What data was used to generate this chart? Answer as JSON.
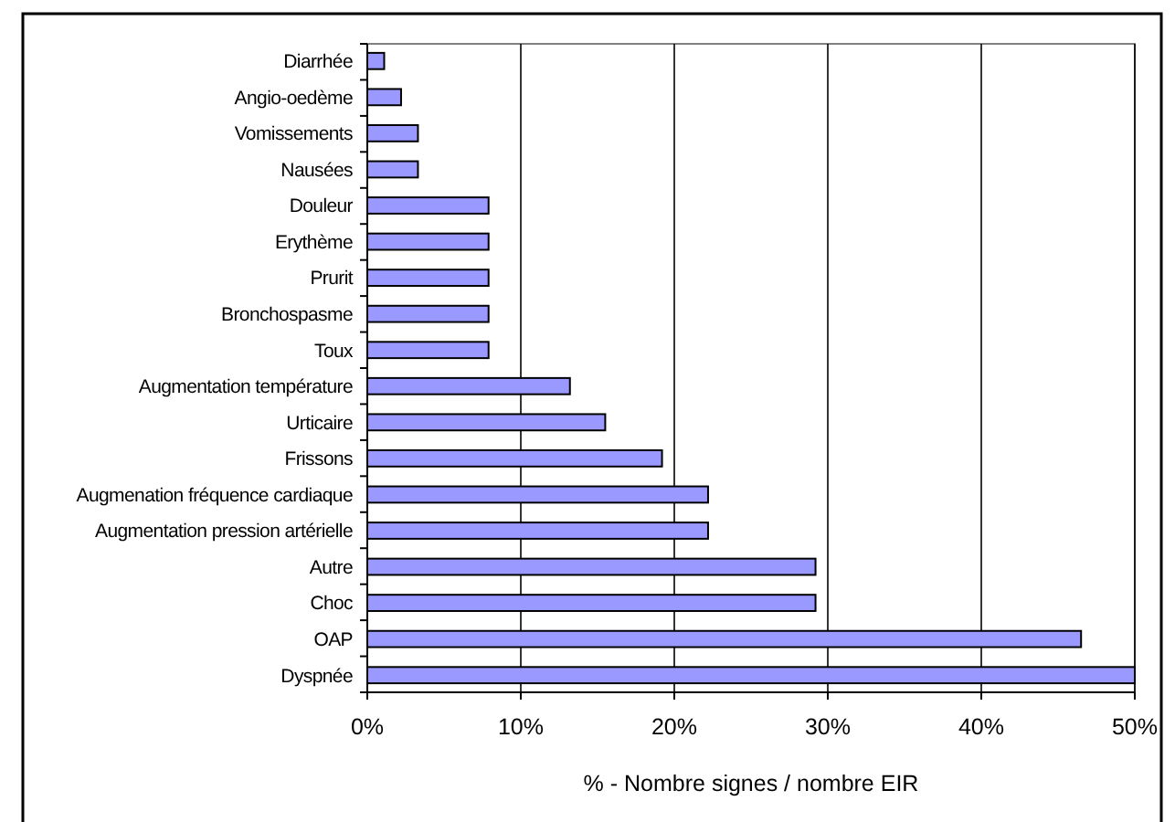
{
  "chart_data": {
    "type": "bar",
    "orientation": "horizontal",
    "xlabel": "% - Nombre signes / nombre EIR",
    "categories": [
      "Diarrhée",
      "Angio-oedème",
      "Vomissements",
      "Nausées",
      "Douleur",
      "Erythème",
      "Prurit",
      "Bronchospasme",
      "Toux",
      "Augmentation température",
      "Urticaire",
      "Frissons",
      "Augmenation fréquence cardiaque",
      "Augmentation pression artérielle",
      "Autre",
      "Choc",
      "OAP",
      "Dyspnée"
    ],
    "values": [
      1.1,
      2.2,
      3.3,
      3.3,
      7.9,
      7.9,
      7.9,
      7.9,
      7.9,
      13.2,
      15.5,
      19.2,
      22.2,
      22.2,
      29.2,
      29.2,
      46.5,
      50
    ],
    "color": "#9999ff",
    "xlim": [
      0,
      50
    ],
    "xticks": [
      {
        "value": 0,
        "label": "0%"
      },
      {
        "value": 10,
        "label": "10%"
      },
      {
        "value": 20,
        "label": "20%"
      },
      {
        "value": 30,
        "label": "30%"
      },
      {
        "value": 40,
        "label": "40%"
      },
      {
        "value": 50,
        "label": "50%"
      }
    ],
    "grid": "x"
  }
}
